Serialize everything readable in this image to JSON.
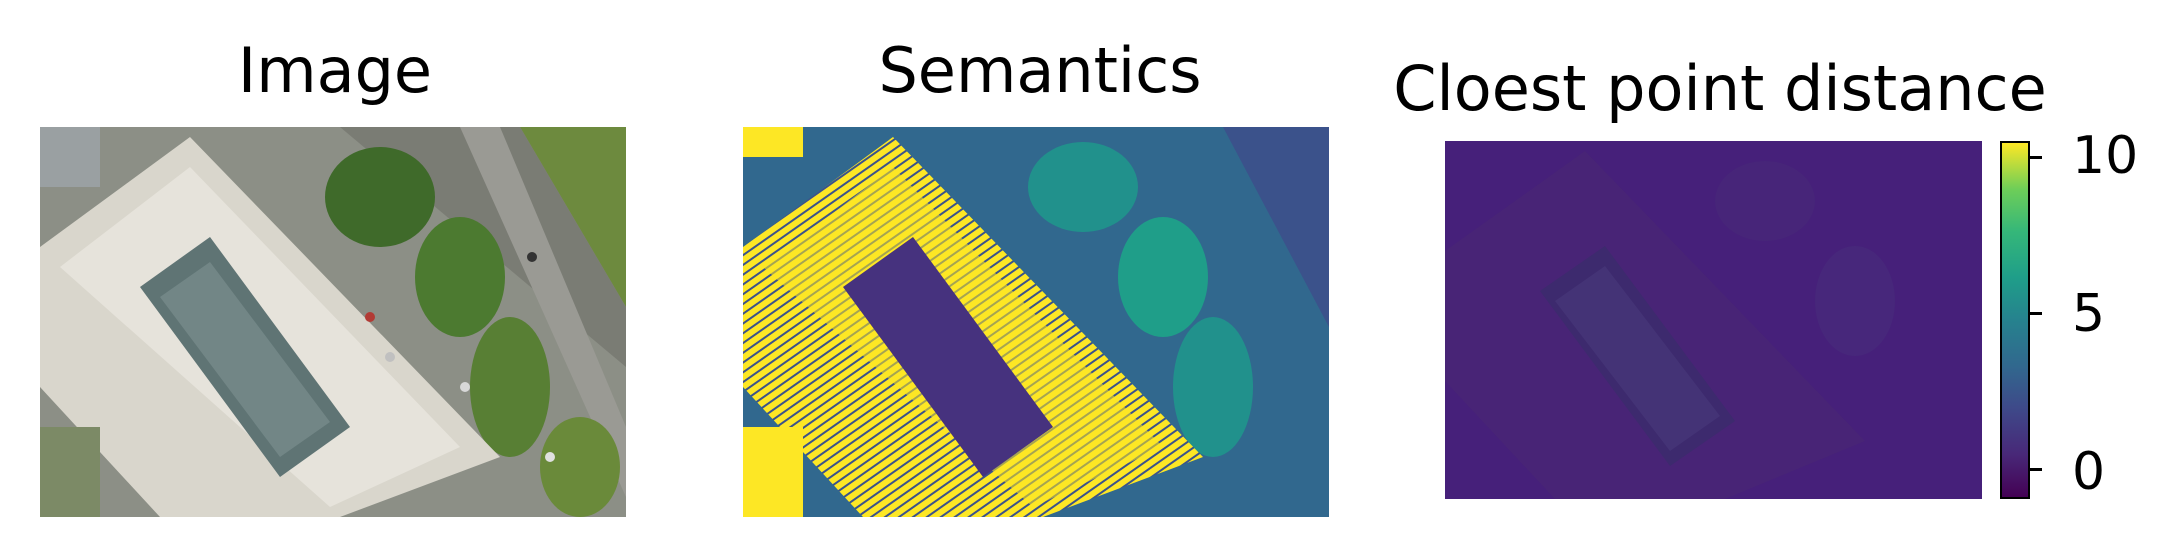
{
  "panels": [
    {
      "title": "Image"
    },
    {
      "title": "Semantics"
    },
    {
      "title": "Cloest point distance"
    }
  ],
  "colorbar": {
    "colormap": "viridis",
    "ticks": [
      "10",
      "5",
      "0"
    ],
    "range": [
      -1,
      10.5
    ]
  },
  "colors": {
    "viridis_low": "#440154",
    "viridis_mid": "#21918c",
    "viridis_high": "#fde725"
  }
}
